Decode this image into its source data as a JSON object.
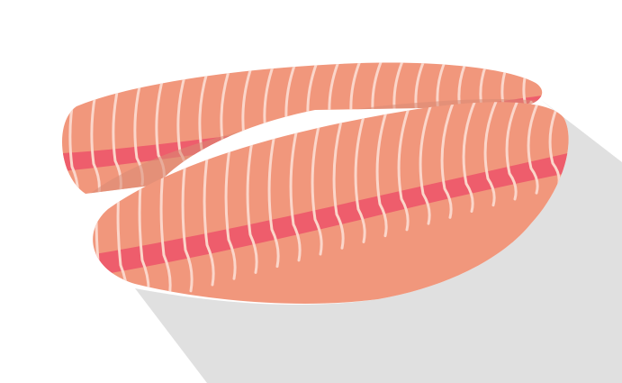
{
  "scene": {
    "subject": "salmon-fillets",
    "icon_names": [
      "salmon-fillet-icon"
    ],
    "style": "flat-vector-long-shadow",
    "colors": {
      "background": "#ffffff",
      "shadow": "#e0e0e0",
      "flesh": "#f1977c",
      "bloodline": "#ee5d6c",
      "fat_lines": "#fbd6ca",
      "overlap_shade": "#d98a75"
    },
    "fillet_count": 2
  }
}
